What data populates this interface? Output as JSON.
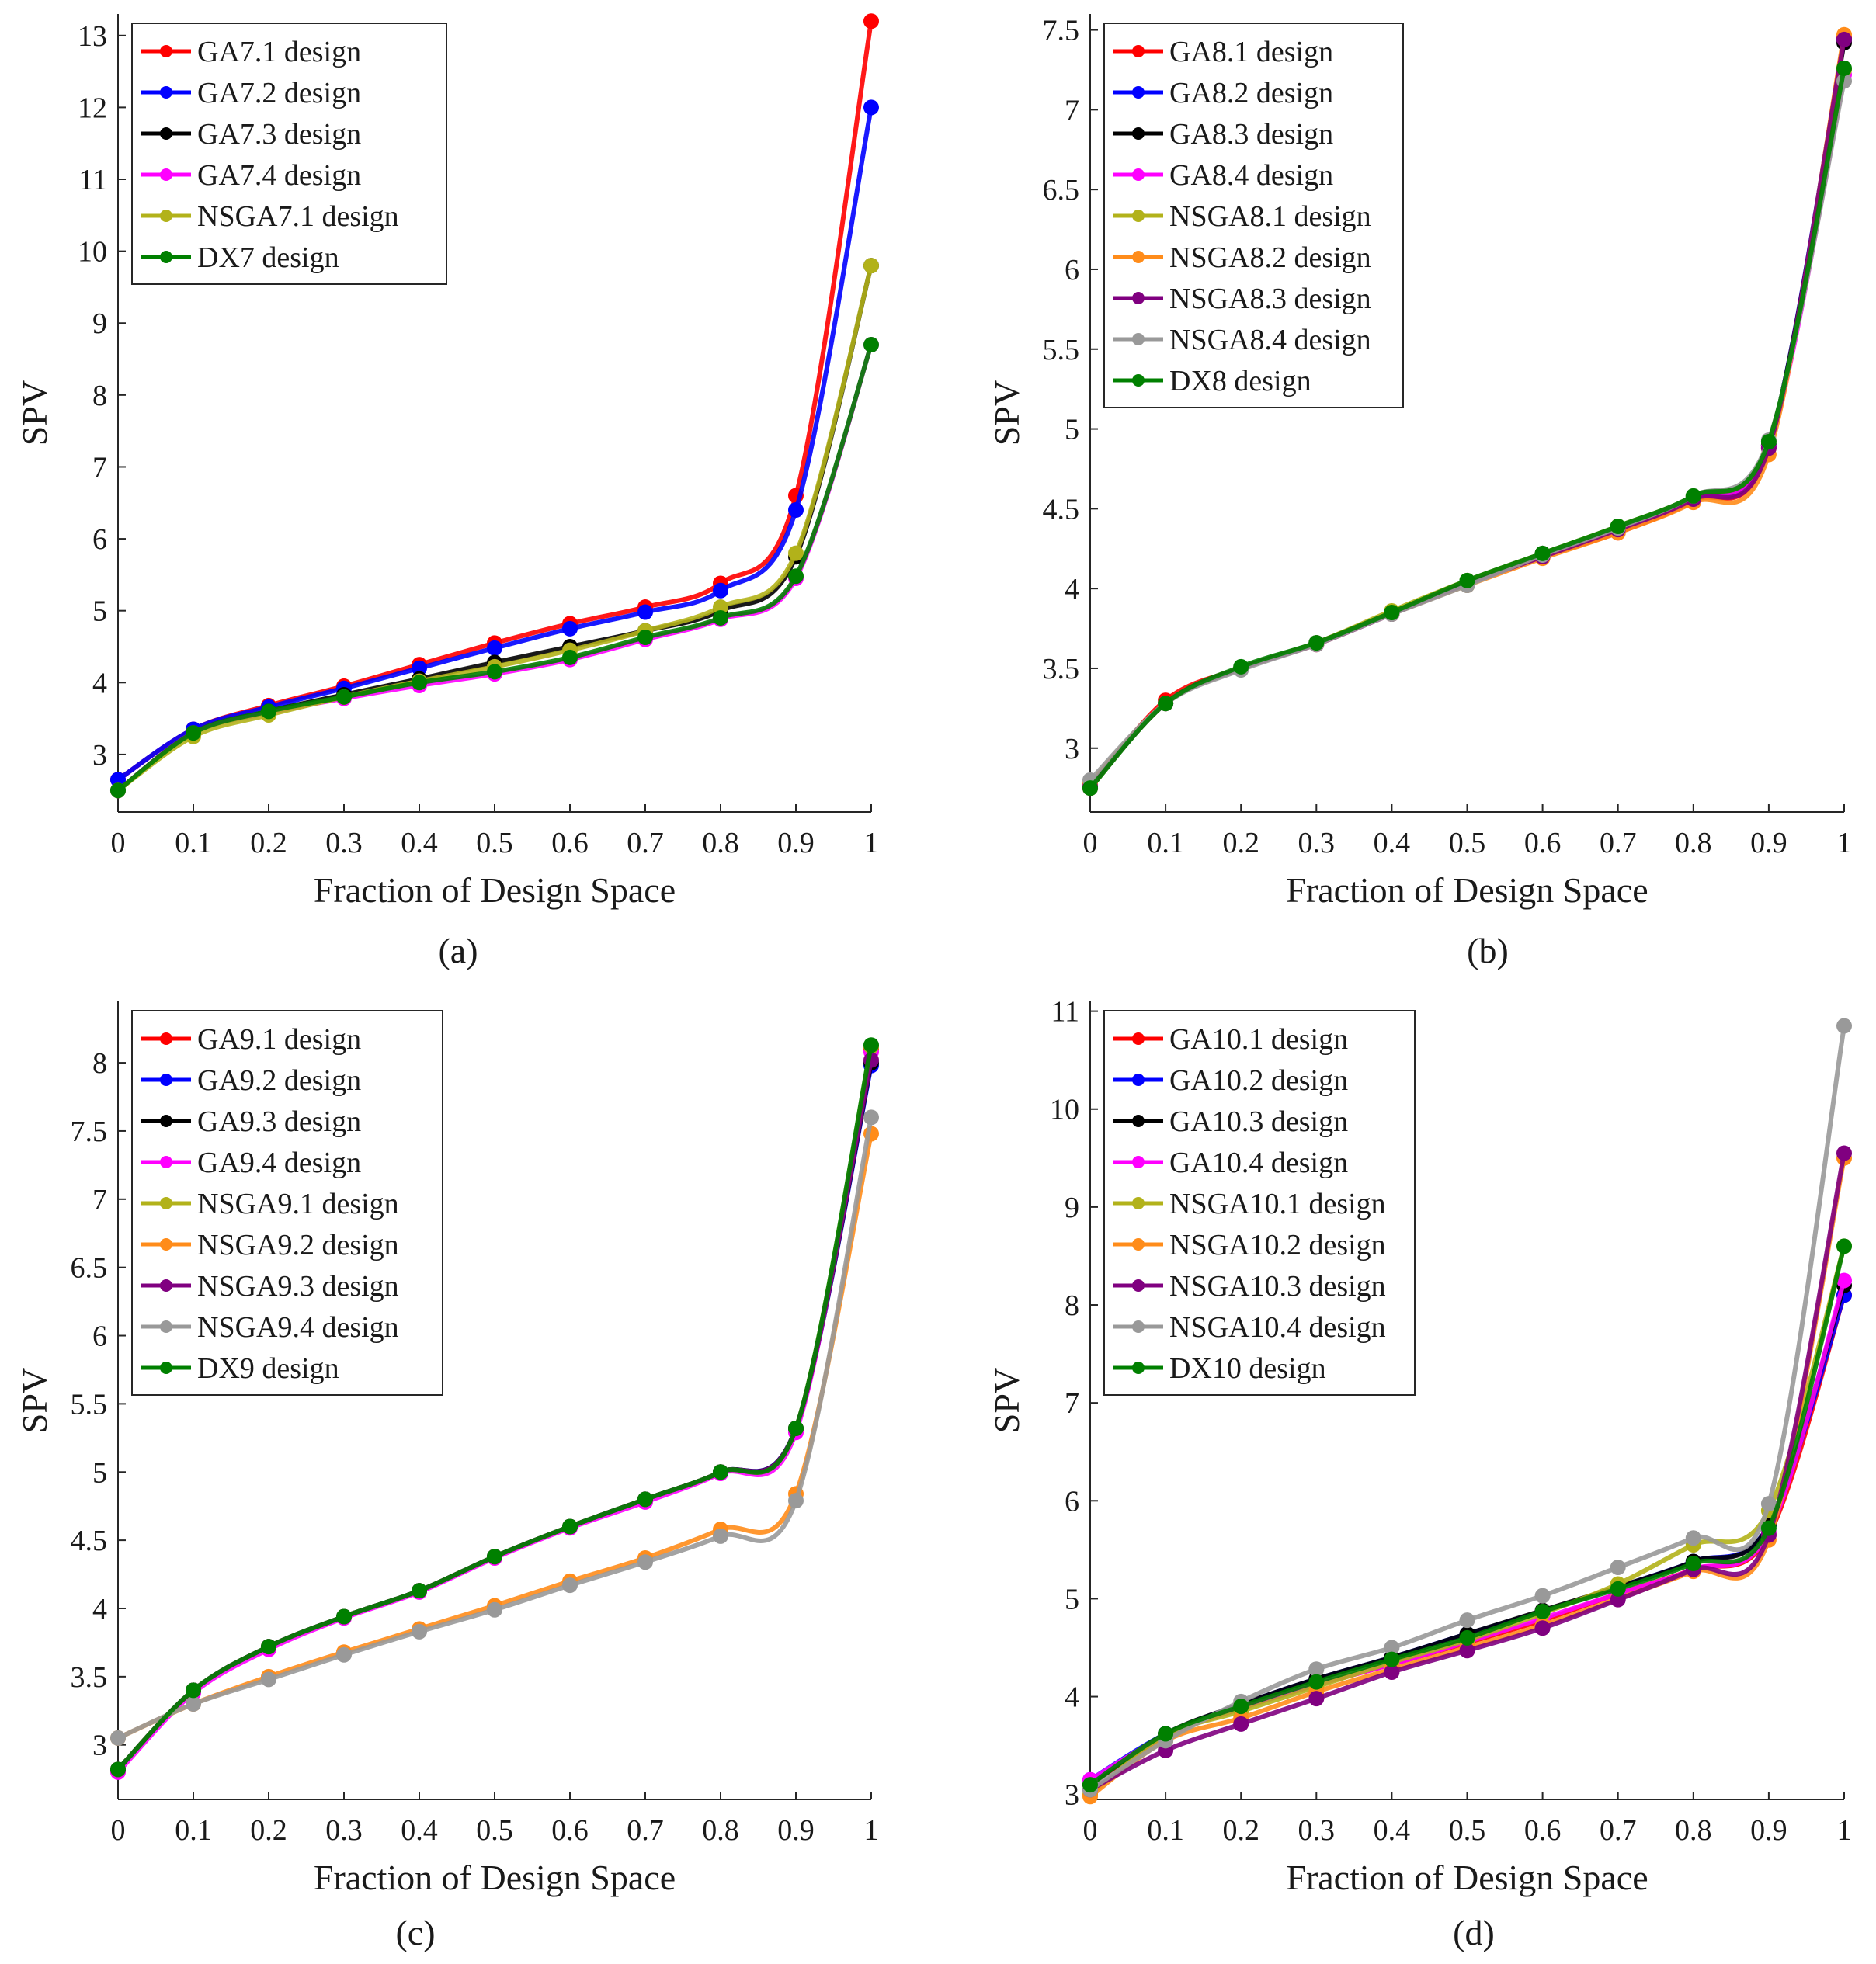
{
  "figure": {
    "captions": [
      "(a)",
      "(b)",
      "(c)",
      "(d)"
    ]
  },
  "chart_data": [
    {
      "type": "line",
      "caption": "(a)",
      "xlabel": "Fraction of Design Space",
      "ylabel": "SPV",
      "xlim": [
        0,
        1
      ],
      "ylim": [
        2.2,
        13.3
      ],
      "xticks": [
        0,
        0.1,
        0.2,
        0.3,
        0.4,
        0.5,
        0.6,
        0.7,
        0.8,
        0.9,
        1
      ],
      "xtick_labels": [
        "0",
        "0.1",
        "0.2",
        "0.3",
        "0.4",
        "0.5",
        "0.6",
        "0.7",
        "0.8",
        "0.9",
        "1"
      ],
      "yticks": [
        3,
        4,
        5,
        6,
        7,
        8,
        9,
        10,
        11,
        12,
        13
      ],
      "ytick_labels": [
        "3",
        "4",
        "5",
        "6",
        "7",
        "8",
        "9",
        "10",
        "11",
        "12",
        "13"
      ],
      "legend_position": "top-left",
      "x": [
        0,
        0.1,
        0.2,
        0.3,
        0.4,
        0.5,
        0.6,
        0.7,
        0.8,
        0.9,
        1
      ],
      "series": [
        {
          "name": "GA7.1 design",
          "color": "#ff0000",
          "values": [
            2.65,
            3.35,
            3.68,
            3.95,
            4.25,
            4.55,
            4.82,
            5.05,
            5.38,
            6.6,
            13.2
          ]
        },
        {
          "name": "GA7.2 design",
          "color": "#0000ff",
          "values": [
            2.65,
            3.35,
            3.66,
            3.92,
            4.2,
            4.48,
            4.75,
            4.98,
            5.28,
            6.4,
            12.0
          ]
        },
        {
          "name": "GA7.3 design",
          "color": "#000000",
          "values": [
            2.5,
            3.3,
            3.6,
            3.83,
            4.05,
            4.28,
            4.5,
            4.72,
            5.0,
            5.75,
            9.8
          ]
        },
        {
          "name": "GA7.4 design",
          "color": "#ff00ff",
          "values": [
            2.5,
            3.3,
            3.58,
            3.78,
            3.96,
            4.12,
            4.32,
            4.6,
            4.88,
            5.45,
            8.7
          ]
        },
        {
          "name": "NSGA7.1 design",
          "color": "#b2b21a",
          "values": [
            2.5,
            3.25,
            3.55,
            3.8,
            4.02,
            4.22,
            4.45,
            4.72,
            5.05,
            5.8,
            9.8
          ]
        },
        {
          "name": "DX7 design",
          "color": "#008000",
          "values": [
            2.5,
            3.3,
            3.6,
            3.8,
            4.0,
            4.15,
            4.35,
            4.63,
            4.9,
            5.48,
            8.7
          ]
        }
      ]
    },
    {
      "type": "line",
      "caption": "(b)",
      "xlabel": "Fraction of Design Space",
      "ylabel": "SPV",
      "xlim": [
        0,
        1
      ],
      "ylim": [
        2.6,
        7.6
      ],
      "xticks": [
        0,
        0.1,
        0.2,
        0.3,
        0.4,
        0.5,
        0.6,
        0.7,
        0.8,
        0.9,
        1
      ],
      "xtick_labels": [
        "0",
        "0.1",
        "0.2",
        "0.3",
        "0.4",
        "0.5",
        "0.6",
        "0.7",
        "0.8",
        "0.9",
        "1"
      ],
      "yticks": [
        3,
        3.5,
        4,
        4.5,
        5,
        5.5,
        6,
        6.5,
        7,
        7.5
      ],
      "ytick_labels": [
        "3",
        "3.5",
        "4",
        "4.5",
        "5",
        "5.5",
        "6",
        "6.5",
        "7",
        "7.5"
      ],
      "legend_position": "top-left",
      "x": [
        0,
        0.1,
        0.2,
        0.3,
        0.4,
        0.5,
        0.6,
        0.7,
        0.8,
        0.9,
        1
      ],
      "series": [
        {
          "name": "GA8.1 design",
          "color": "#ff0000",
          "values": [
            2.75,
            3.3,
            3.5,
            3.65,
            3.85,
            4.03,
            4.2,
            4.35,
            4.55,
            4.88,
            7.45
          ]
        },
        {
          "name": "GA8.2 design",
          "color": "#0000ff",
          "values": [
            2.75,
            3.28,
            3.5,
            3.66,
            3.85,
            4.04,
            4.22,
            4.38,
            4.57,
            4.9,
            7.44
          ]
        },
        {
          "name": "GA8.3 design",
          "color": "#000000",
          "values": [
            2.75,
            3.28,
            3.5,
            3.66,
            3.85,
            4.04,
            4.22,
            4.38,
            4.57,
            4.9,
            7.42
          ]
        },
        {
          "name": "GA8.4 design",
          "color": "#ff00ff",
          "values": [
            2.76,
            3.28,
            3.5,
            3.65,
            3.85,
            4.04,
            4.21,
            4.37,
            4.56,
            4.89,
            7.22
          ]
        },
        {
          "name": "NSGA8.1 design",
          "color": "#b2b21a",
          "values": [
            2.75,
            3.28,
            3.5,
            3.66,
            3.86,
            4.05,
            4.22,
            4.39,
            4.58,
            4.92,
            7.25
          ]
        },
        {
          "name": "NSGA8.2 design",
          "color": "#ff8c1a",
          "values": [
            2.78,
            3.28,
            3.5,
            3.65,
            3.84,
            4.02,
            4.19,
            4.35,
            4.54,
            4.84,
            7.47
          ]
        },
        {
          "name": "NSGA8.3 design",
          "color": "#800080",
          "values": [
            2.76,
            3.28,
            3.5,
            3.65,
            3.84,
            4.03,
            4.2,
            4.37,
            4.56,
            4.88,
            7.44
          ]
        },
        {
          "name": "NSGA8.4 design",
          "color": "#999999",
          "values": [
            2.8,
            3.28,
            3.49,
            3.65,
            3.84,
            4.02,
            4.21,
            4.38,
            4.58,
            4.93,
            7.18
          ]
        },
        {
          "name": "DX8 design",
          "color": "#008000",
          "values": [
            2.75,
            3.28,
            3.51,
            3.66,
            3.85,
            4.05,
            4.22,
            4.39,
            4.58,
            4.92,
            7.26
          ]
        }
      ]
    },
    {
      "type": "line",
      "caption": "(c)",
      "xlabel": "Fraction of Design Space",
      "ylabel": "SPV",
      "xlim": [
        0,
        1
      ],
      "ylim": [
        2.6,
        8.45
      ],
      "xticks": [
        0,
        0.1,
        0.2,
        0.3,
        0.4,
        0.5,
        0.6,
        0.7,
        0.8,
        0.9,
        1
      ],
      "xtick_labels": [
        "0",
        "0.1",
        "0.2",
        "0.3",
        "0.4",
        "0.5",
        "0.6",
        "0.7",
        "0.8",
        "0.9",
        "1"
      ],
      "yticks": [
        3,
        3.5,
        4,
        4.5,
        5,
        5.5,
        6,
        6.5,
        7,
        7.5,
        8
      ],
      "ytick_labels": [
        "3",
        "3.5",
        "4",
        "4.5",
        "5",
        "5.5",
        "6",
        "6.5",
        "7",
        "7.5",
        "8"
      ],
      "legend_position": "top-left",
      "x": [
        0,
        0.1,
        0.2,
        0.3,
        0.4,
        0.5,
        0.6,
        0.7,
        0.8,
        0.9,
        1
      ],
      "series": [
        {
          "name": "GA9.1 design",
          "color": "#ff0000",
          "values": [
            2.82,
            3.4,
            3.72,
            3.94,
            4.13,
            4.38,
            4.6,
            4.8,
            5.0,
            5.32,
            8.1
          ]
        },
        {
          "name": "GA9.2 design",
          "color": "#0000ff",
          "values": [
            2.82,
            3.4,
            3.72,
            3.94,
            4.13,
            4.38,
            4.6,
            4.8,
            5.0,
            5.32,
            7.98
          ]
        },
        {
          "name": "GA9.3 design",
          "color": "#000000",
          "values": [
            2.82,
            3.4,
            3.72,
            3.94,
            4.13,
            4.38,
            4.6,
            4.8,
            5.0,
            5.32,
            8.0
          ]
        },
        {
          "name": "GA9.4 design",
          "color": "#ff00ff",
          "values": [
            2.8,
            3.38,
            3.7,
            3.93,
            4.12,
            4.37,
            4.59,
            4.78,
            4.99,
            5.29,
            8.08
          ]
        },
        {
          "name": "NSGA9.1 design",
          "color": "#b2b21a",
          "values": [
            2.82,
            3.4,
            3.72,
            3.94,
            4.13,
            4.38,
            4.6,
            4.8,
            5.0,
            5.32,
            8.12
          ]
        },
        {
          "name": "NSGA9.2 design",
          "color": "#ff8c1a",
          "values": [
            3.05,
            3.3,
            3.5,
            3.68,
            3.85,
            4.02,
            4.2,
            4.37,
            4.58,
            4.84,
            7.48
          ]
        },
        {
          "name": "NSGA9.3 design",
          "color": "#800080",
          "values": [
            2.82,
            3.4,
            3.72,
            3.94,
            4.13,
            4.38,
            4.6,
            4.8,
            5.0,
            5.32,
            8.02
          ]
        },
        {
          "name": "NSGA9.4 design",
          "color": "#999999",
          "values": [
            3.05,
            3.3,
            3.48,
            3.66,
            3.83,
            3.99,
            4.17,
            4.34,
            4.53,
            4.79,
            7.6
          ]
        },
        {
          "name": "DX9 design",
          "color": "#008000",
          "values": [
            2.82,
            3.4,
            3.72,
            3.94,
            4.13,
            4.38,
            4.6,
            4.8,
            5.0,
            5.32,
            8.13
          ]
        }
      ]
    },
    {
      "type": "line",
      "caption": "(d)",
      "xlabel": "Fraction of Design Space",
      "ylabel": "SPV",
      "xlim": [
        0,
        1
      ],
      "ylim": [
        2.95,
        11.1
      ],
      "xticks": [
        0,
        0.1,
        0.2,
        0.3,
        0.4,
        0.5,
        0.6,
        0.7,
        0.8,
        0.9,
        1
      ],
      "xtick_labels": [
        "0",
        "0.1",
        "0.2",
        "0.3",
        "0.4",
        "0.5",
        "0.6",
        "0.7",
        "0.8",
        "0.9",
        "1"
      ],
      "yticks": [
        3,
        4,
        5,
        6,
        7,
        8,
        9,
        10,
        11
      ],
      "ytick_labels": [
        "3",
        "4",
        "5",
        "6",
        "7",
        "8",
        "9",
        "10",
        "11"
      ],
      "legend_position": "top-left",
      "x": [
        0,
        0.1,
        0.2,
        0.3,
        0.4,
        0.5,
        0.6,
        0.7,
        0.8,
        0.9,
        1
      ],
      "series": [
        {
          "name": "GA10.1 design",
          "color": "#ff0000",
          "values": [
            3.1,
            3.6,
            3.88,
            4.12,
            4.33,
            4.55,
            4.78,
            5.05,
            5.3,
            5.65,
            8.1
          ]
        },
        {
          "name": "GA10.2 design",
          "color": "#0000ff",
          "values": [
            3.15,
            3.62,
            3.92,
            4.18,
            4.4,
            4.64,
            4.87,
            5.12,
            5.38,
            5.75,
            8.1
          ]
        },
        {
          "name": "GA10.3 design",
          "color": "#000000",
          "values": [
            3.1,
            3.62,
            3.92,
            4.18,
            4.4,
            4.64,
            4.88,
            5.12,
            5.38,
            5.75,
            8.2
          ]
        },
        {
          "name": "GA10.4 design",
          "color": "#ff00ff",
          "values": [
            3.15,
            3.6,
            3.88,
            4.12,
            4.33,
            4.56,
            4.8,
            5.05,
            5.3,
            5.68,
            8.25
          ]
        },
        {
          "name": "NSGA10.1 design",
          "color": "#b2b21a",
          "values": [
            3.0,
            3.6,
            3.85,
            4.1,
            4.35,
            4.58,
            4.85,
            5.15,
            5.55,
            5.9,
            8.6
          ]
        },
        {
          "name": "NSGA10.2 design",
          "color": "#ff8c1a",
          "values": [
            2.98,
            3.55,
            3.78,
            4.05,
            4.28,
            4.5,
            4.73,
            5.0,
            5.28,
            5.6,
            9.5
          ]
        },
        {
          "name": "NSGA10.3 design",
          "color": "#800080",
          "values": [
            3.05,
            3.45,
            3.72,
            3.98,
            4.25,
            4.47,
            4.7,
            4.99,
            5.3,
            5.65,
            9.55
          ]
        },
        {
          "name": "NSGA10.4 design",
          "color": "#999999",
          "values": [
            3.05,
            3.55,
            3.95,
            4.28,
            4.5,
            4.78,
            5.03,
            5.32,
            5.62,
            5.97,
            10.85
          ]
        },
        {
          "name": "DX10 design",
          "color": "#008000",
          "values": [
            3.1,
            3.62,
            3.9,
            4.15,
            4.38,
            4.6,
            4.87,
            5.1,
            5.36,
            5.72,
            8.6
          ]
        }
      ]
    }
  ]
}
